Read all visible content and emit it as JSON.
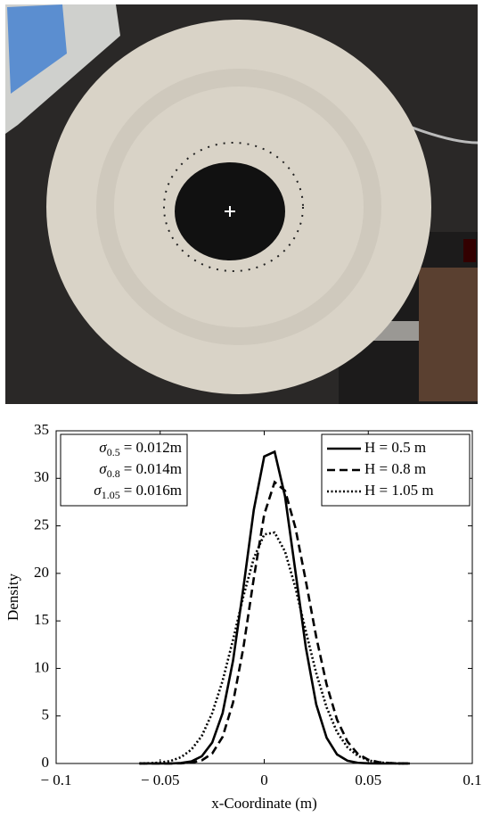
{
  "chart_data": {
    "type": "line",
    "xlabel": "x-Coordinate (m)",
    "ylabel": "Density",
    "xlim": [
      -0.1,
      0.1
    ],
    "ylim": [
      0,
      35
    ],
    "xticks": [
      {
        "value": -0.1,
        "label": "− 0.1"
      },
      {
        "value": -0.05,
        "label": "− 0.05"
      },
      0,
      0.05,
      0.1
    ],
    "yticks": [
      0,
      5,
      10,
      15,
      20,
      25,
      30,
      35
    ],
    "legend": "upper right",
    "annotations": [
      {
        "symbol": "σ",
        "subscript": "0.5",
        "text": "= 0.012m"
      },
      {
        "symbol": "σ",
        "subscript": "0.8",
        "text": "= 0.014m"
      },
      {
        "symbol": "σ",
        "subscript": "1.05",
        "text": "= 0.016m"
      }
    ],
    "x": [
      -0.06,
      -0.055,
      -0.05,
      -0.045,
      -0.04,
      -0.035,
      -0.03,
      -0.025,
      -0.02,
      -0.015,
      -0.01,
      -0.005,
      0,
      0.005,
      0.01,
      0.015,
      0.02,
      0.025,
      0.03,
      0.035,
      0.04,
      0.045,
      0.05,
      0.055,
      0.06,
      0.065,
      0.07
    ],
    "series": [
      {
        "name": "H = 0.5 m",
        "color": "#000000",
        "dash": "solid",
        "values": [
          0,
          0,
          0,
          0,
          0.05,
          0.22,
          0.76,
          2.2,
          5.3,
          10.8,
          18.5,
          26.7,
          32.3,
          32.8,
          28.1,
          20.2,
          12.2,
          6.2,
          2.7,
          0.95,
          0.29,
          0.07,
          0.02,
          0,
          0,
          0,
          0
        ]
      },
      {
        "name": "H = 0.8 m",
        "color": "#000000",
        "dash": "dashed",
        "values": [
          0,
          0,
          0,
          0,
          0.02,
          0.09,
          0.33,
          1.05,
          2.8,
          6.4,
          12.2,
          19.5,
          26.2,
          29.6,
          28.7,
          24.8,
          19.2,
          13.3,
          8.3,
          4.6,
          2.3,
          1.0,
          0.4,
          0.14,
          0.05,
          0.01,
          0
        ]
      },
      {
        "name": "H = 1.05 m",
        "color": "#000000",
        "dash": "dotted",
        "values": [
          0.01,
          0.03,
          0.1,
          0.27,
          0.66,
          1.46,
          2.9,
          5.3,
          8.7,
          13.0,
          17.6,
          21.6,
          24.1,
          24.3,
          22.3,
          18.5,
          13.9,
          9.5,
          5.9,
          3.3,
          1.7,
          0.8,
          0.33,
          0.12,
          0.04,
          0.01,
          0
        ]
      }
    ]
  }
}
